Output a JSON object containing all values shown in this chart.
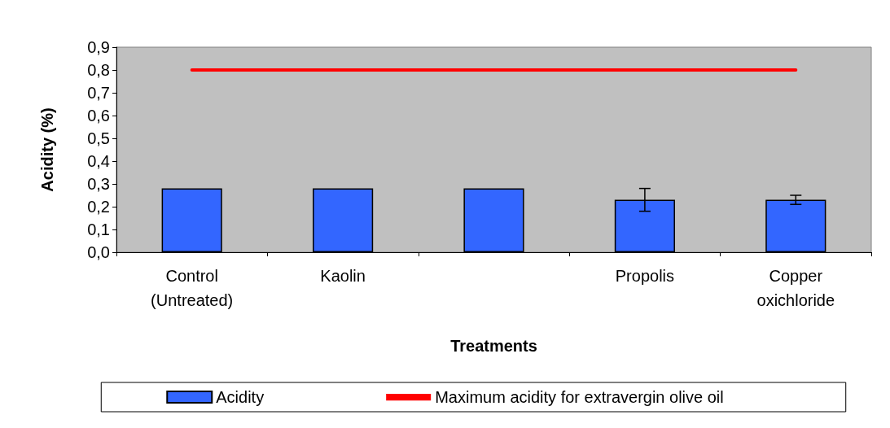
{
  "chart_data": {
    "type": "bar",
    "xlabel": "Treatments",
    "ylabel": "Acidity (%)",
    "categories": [
      "Control\n(Untreated)",
      "Kaolin",
      null,
      "Propolis",
      "Copper\noxichloride"
    ],
    "series": [
      {
        "name": "Acidity",
        "color": "#3366ff",
        "values": [
          0.28,
          0.28,
          0.28,
          0.23,
          0.23
        ],
        "errors": [
          null,
          null,
          null,
          0.05,
          0.02
        ]
      },
      {
        "name": "Maximum acidity for extravergin olive oil",
        "type": "line",
        "color": "#ff0000",
        "marker": "none",
        "values": [
          0.8,
          0.8,
          0.8,
          0.8,
          0.8
        ]
      }
    ],
    "ylim": [
      0,
      0.9
    ],
    "yticks": [
      {
        "value": 0,
        "label": "0,0"
      },
      {
        "value": 0.1,
        "label": "0,1"
      },
      {
        "value": 0.2,
        "label": "0,2"
      },
      {
        "value": 0.3,
        "label": "0,3"
      },
      {
        "value": 0.4,
        "label": "0,4"
      },
      {
        "value": 0.5,
        "label": "0,5"
      },
      {
        "value": 0.6,
        "label": "0,6"
      },
      {
        "value": 0.7,
        "label": "0,7"
      },
      {
        "value": 0.8,
        "label": "0,8"
      },
      {
        "value": 0.9,
        "label": "0,9"
      }
    ],
    "grid": false,
    "legend": "bottom"
  }
}
